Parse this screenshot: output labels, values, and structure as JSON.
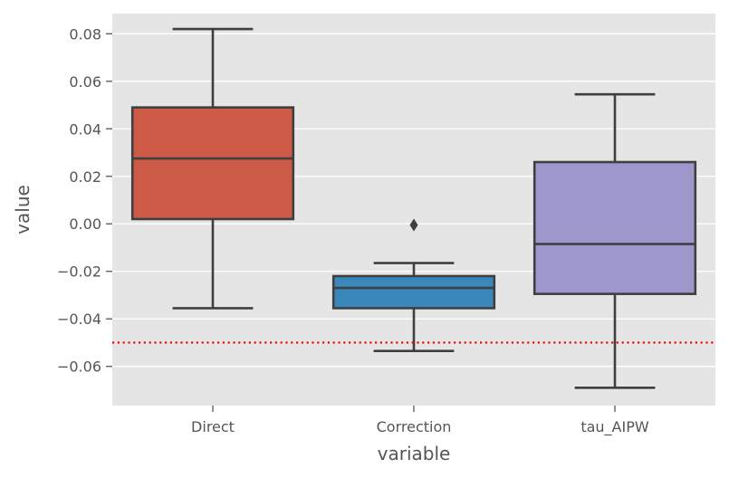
{
  "chart_data": {
    "type": "box",
    "title": "",
    "xlabel": "variable",
    "ylabel": "value",
    "ylim": [
      -0.0765,
      0.0885
    ],
    "yticks": [
      -0.06,
      -0.04,
      -0.02,
      0.0,
      0.02,
      0.04,
      0.06,
      0.08
    ],
    "ytick_labels": [
      "−0.06",
      "−0.04",
      "−0.02",
      "0.00",
      "0.02",
      "0.04",
      "0.06",
      "0.08"
    ],
    "grid": true,
    "categories": [
      "Direct",
      "Correction",
      "tau_AIPW"
    ],
    "boxes": [
      {
        "category": "Direct",
        "whisker_low": -0.0355,
        "q1": 0.002,
        "median": 0.0275,
        "q3": 0.049,
        "whisker_high": 0.082,
        "outliers": [],
        "color": "#cc5a47"
      },
      {
        "category": "Correction",
        "whisker_low": -0.0535,
        "q1": -0.0355,
        "median": -0.027,
        "q3": -0.022,
        "whisker_high": -0.0165,
        "outliers": [
          -0.0005
        ],
        "color": "#3a88bb"
      },
      {
        "category": "tau_AIPW",
        "whisker_low": -0.069,
        "q1": -0.0295,
        "median": -0.0085,
        "q3": 0.026,
        "whisker_high": 0.0545,
        "outliers": [],
        "color": "#9d97cc"
      }
    ],
    "reference_line": {
      "y": -0.05,
      "color": "#e8000b",
      "style": "dotted"
    },
    "colors": {
      "panel_background": "#e5e5e5",
      "grid": "#ffffff",
      "box_edge": "#3f3f3f"
    }
  }
}
